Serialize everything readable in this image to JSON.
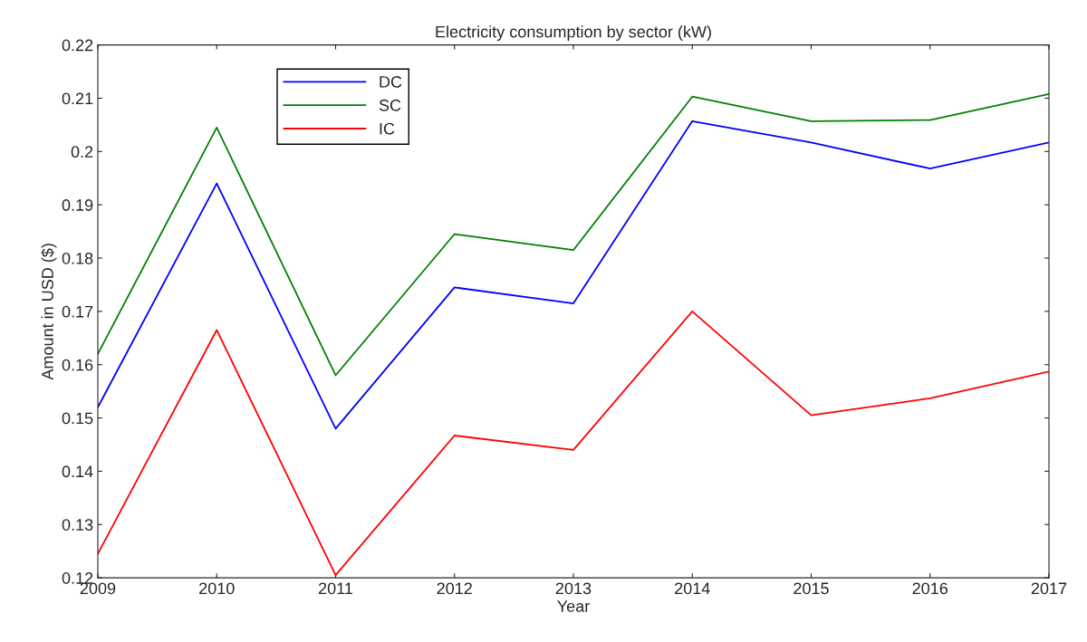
{
  "chart_data": {
    "type": "line",
    "title": "Electricity consumption by sector (kW)",
    "xlabel": "Year",
    "ylabel": "Amount in USD ($)",
    "x": [
      2009,
      2010,
      2011,
      2012,
      2013,
      2014,
      2015,
      2016,
      2017
    ],
    "series": [
      {
        "name": "DC",
        "color": "#0000ff",
        "values": [
          0.152,
          0.194,
          0.148,
          0.1745,
          0.1715,
          0.2057,
          0.2017,
          0.1968,
          0.2017
        ]
      },
      {
        "name": "SC",
        "color": "#008000",
        "values": [
          0.162,
          0.2045,
          0.158,
          0.1845,
          0.1815,
          0.2103,
          0.2057,
          0.2059,
          0.2108
        ]
      },
      {
        "name": "IC",
        "color": "#ff0000",
        "values": [
          0.1245,
          0.1665,
          0.1205,
          0.1467,
          0.144,
          0.17,
          0.1505,
          0.1537,
          0.1587
        ]
      }
    ],
    "xlim": [
      2009,
      2017
    ],
    "xticks": [
      2009,
      2010,
      2011,
      2012,
      2013,
      2014,
      2015,
      2016,
      2017
    ],
    "ylim": [
      0.12,
      0.22
    ],
    "yticks": [
      0.12,
      0.13,
      0.14,
      0.15,
      0.16,
      0.17,
      0.18,
      0.19,
      0.2,
      0.21,
      0.22
    ],
    "grid": false,
    "legend": "top left",
    "marker": "none",
    "line_style": "solid"
  }
}
